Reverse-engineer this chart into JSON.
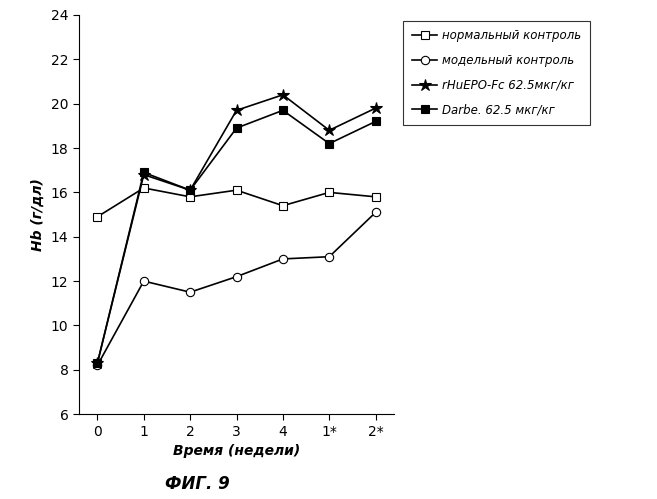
{
  "x_labels": [
    "0",
    "1",
    "2",
    "3",
    "4",
    "1*",
    "2*"
  ],
  "x_positions": [
    0,
    1,
    2,
    3,
    4,
    5,
    6
  ],
  "series": [
    {
      "label": "нормальный контроль",
      "values": [
        14.9,
        16.2,
        15.8,
        16.1,
        15.4,
        16.0,
        15.8
      ],
      "marker": "s",
      "color": "black",
      "linestyle": "-",
      "markersize": 6,
      "markerfacecolor": "white",
      "linewidth": 1.2
    },
    {
      "label": "модельный контроль",
      "values": [
        8.2,
        12.0,
        11.5,
        12.2,
        13.0,
        13.1,
        15.1
      ],
      "marker": "o",
      "color": "black",
      "linestyle": "-",
      "markersize": 6,
      "markerfacecolor": "white",
      "linewidth": 1.2
    },
    {
      "label": "rHuEPO-Fc 62.5мкг/кг",
      "values": [
        8.3,
        16.8,
        16.1,
        19.7,
        20.4,
        18.8,
        19.8
      ],
      "marker": "*",
      "color": "black",
      "linestyle": "-",
      "markersize": 9,
      "markerfacecolor": "black",
      "linewidth": 1.2
    },
    {
      "label": "Darbe. 62.5 мкг/кг",
      "values": [
        8.3,
        16.9,
        16.1,
        18.9,
        19.7,
        18.2,
        19.2
      ],
      "marker": "s",
      "color": "black",
      "linestyle": "-",
      "markersize": 6,
      "markerfacecolor": "black",
      "linewidth": 1.2
    }
  ],
  "ylabel": "Hb (г/дл)",
  "xlabel": "Время (недели)",
  "title": "ФИГ. 9",
  "ylim": [
    6,
    24
  ],
  "yticks": [
    6,
    8,
    10,
    12,
    14,
    16,
    18,
    20,
    22,
    24
  ],
  "background_color": "white"
}
